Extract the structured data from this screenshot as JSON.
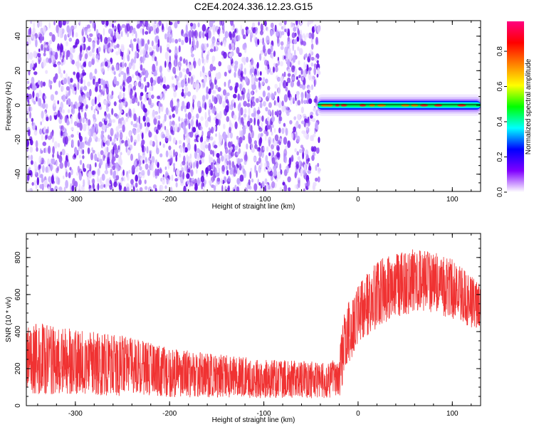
{
  "figure": {
    "title": "C2E4.2024.336.12.23.G15"
  },
  "chart_data": [
    {
      "type": "heatmap",
      "xlabel": "Height of straight line (km)",
      "ylabel": "Frequency (Hz)",
      "xlim": [
        -352,
        130
      ],
      "ylim": [
        -50,
        49
      ],
      "xticks": [
        -300,
        -200,
        -100,
        0,
        100
      ],
      "yticks": [
        -40,
        -20,
        0,
        20,
        40
      ],
      "noise_region_x": [
        -352,
        -41
      ],
      "noise_colormap": [
        "#ffffff",
        "#eadcff",
        "#c5a6ff",
        "#9b5cf5",
        "#6a15e8"
      ],
      "signal_band": {
        "x_start": -43,
        "x_end": 130,
        "center_frequency": 0,
        "half_width_hz": 1.5,
        "peak_x": [
          -35,
          -30,
          -22,
          -15,
          5,
          15,
          25,
          50,
          60,
          70,
          85,
          110
        ]
      },
      "colorbar": {
        "label": "Normalized spectral amplitude",
        "ticks": [
          0.0,
          0.2,
          0.4,
          0.6,
          0.8
        ],
        "range": [
          0,
          0.97
        ],
        "colors": [
          "#ffffff",
          "#8000ff",
          "#0000ff",
          "#00ffff",
          "#00ff00",
          "#ffff00",
          "#ff8000",
          "#ff0000",
          "#ff0080"
        ]
      }
    },
    {
      "type": "line",
      "xlabel": "Height of straight line (km)",
      "ylabel": "SNR (10 * v/v)",
      "xlim": [
        -352,
        130
      ],
      "ylim": [
        0,
        930
      ],
      "xticks": [
        -300,
        -200,
        -100,
        0,
        100
      ],
      "yticks": [
        0,
        200,
        400,
        600,
        800
      ],
      "series": [
        {
          "color": "#f03232",
          "envelope_x": [
            -352,
            -340,
            -300,
            -250,
            -200,
            -150,
            -100,
            -50,
            -20,
            -17,
            -10,
            0,
            20,
            40,
            60,
            80,
            100,
            120,
            130
          ],
          "envelope_min": [
            60,
            60,
            60,
            50,
            45,
            45,
            40,
            40,
            40,
            100,
            220,
            330,
            420,
            480,
            500,
            500,
            470,
            420,
            420
          ],
          "envelope_max": [
            420,
            450,
            410,
            380,
            310,
            280,
            250,
            240,
            250,
            460,
            560,
            650,
            780,
            840,
            850,
            830,
            790,
            700,
            650
          ]
        }
      ]
    }
  ]
}
